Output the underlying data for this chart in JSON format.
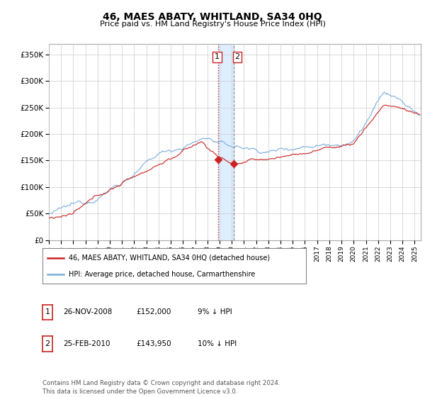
{
  "title": "46, MAES ABATY, WHITLAND, SA34 0HQ",
  "subtitle": "Price paid vs. HM Land Registry's House Price Index (HPI)",
  "ylabel_ticks": [
    "£0",
    "£50K",
    "£100K",
    "£150K",
    "£200K",
    "£250K",
    "£300K",
    "£350K"
  ],
  "ytick_vals": [
    0,
    50000,
    100000,
    150000,
    200000,
    250000,
    300000,
    350000
  ],
  "ylim": [
    0,
    370000
  ],
  "xlim_start": 1995.0,
  "xlim_end": 2025.5,
  "hpi_color": "#7aaddc",
  "price_color": "#cc2222",
  "vline1_x": 2008.9,
  "vline2_x": 2010.15,
  "shade_color": "#ddeeff",
  "marker1_x": 2008.9,
  "marker1_y": 152000,
  "marker2_x": 2010.15,
  "marker2_y": 143950,
  "legend_entries": [
    "46, MAES ABATY, WHITLAND, SA34 0HQ (detached house)",
    "HPI: Average price, detached house, Carmarthenshire"
  ],
  "table_rows": [
    [
      "1",
      "26-NOV-2008",
      "£152,000",
      "9% ↓ HPI"
    ],
    [
      "2",
      "25-FEB-2010",
      "£143,950",
      "10% ↓ HPI"
    ]
  ],
  "footnote": "Contains HM Land Registry data © Crown copyright and database right 2024.\nThis data is licensed under the Open Government Licence v3.0.",
  "background_color": "#ffffff",
  "grid_color": "#cccccc"
}
